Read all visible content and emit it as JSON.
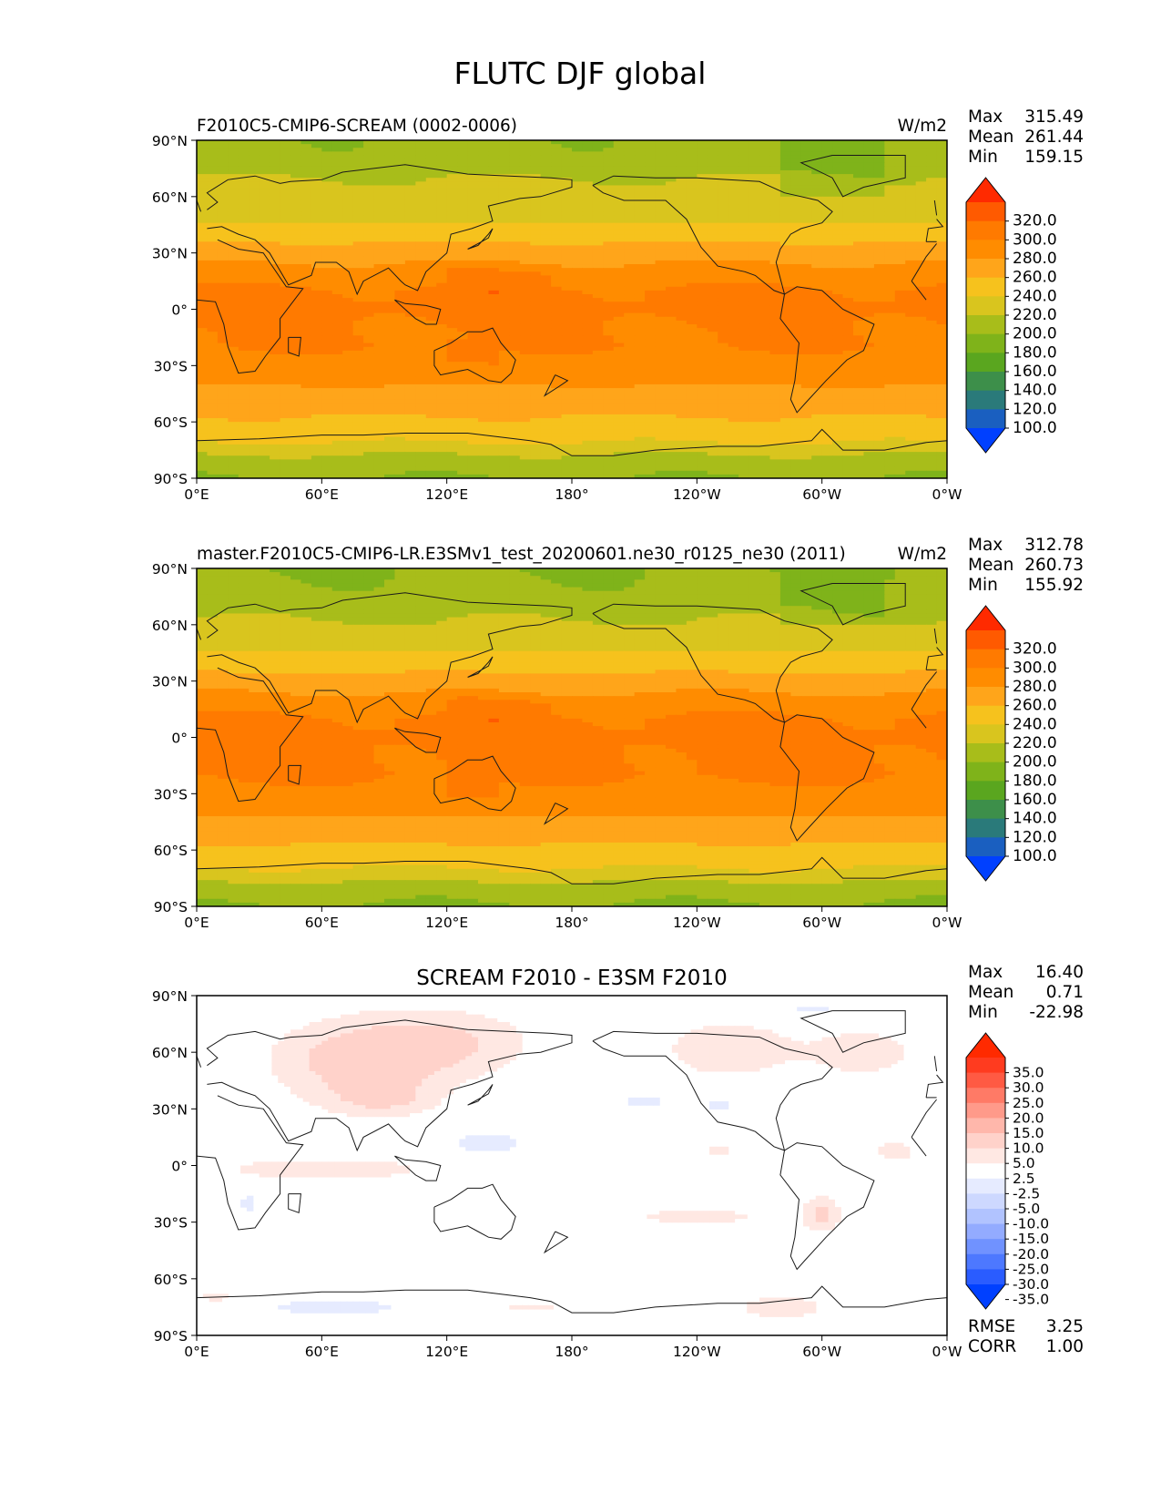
{
  "figure": {
    "title": "FLUTC DJF global"
  },
  "chart_data": [
    {
      "type": "heatmap",
      "title": "F2010C5-CMIP6-SCREAM (0002-0006)",
      "units": "W/m2",
      "stats": [
        {
          "label": "Max",
          "value": "315.49"
        },
        {
          "label": "Mean",
          "value": "261.44"
        },
        {
          "label": "Min",
          "value": "159.15"
        }
      ],
      "x_ticks": [
        "0°E",
        "60°E",
        "120°E",
        "180°",
        "120°W",
        "60°W",
        "0°W"
      ],
      "y_ticks": [
        "90°N",
        "60°N",
        "30°N",
        "0°",
        "30°S",
        "60°S",
        "90°S"
      ],
      "xlim": [
        0,
        360
      ],
      "ylim": [
        -90,
        90
      ],
      "colorbar": {
        "labels": [
          "320.0",
          "300.0",
          "280.0",
          "260.0",
          "240.0",
          "220.0",
          "200.0",
          "180.0",
          "160.0",
          "140.0",
          "120.0",
          "100.0"
        ],
        "colors": [
          "#ff2a00",
          "#ff5a00",
          "#ff7a00",
          "#ff8c00",
          "#ffa51a",
          "#f6c21d",
          "#d9c51e",
          "#a8bd1a",
          "#7fb31a",
          "#5aa61f",
          "#3d8f4a",
          "#2a7a7a",
          "#1a5fc0",
          "#0040ff"
        ]
      },
      "field": {
        "kind": "mean",
        "lat": [
          90,
          80,
          70,
          60,
          50,
          40,
          30,
          20,
          10,
          0,
          -10,
          -20,
          -30,
          -40,
          -50,
          -60,
          -70,
          -80,
          -90
        ],
        "profile": [
          183,
          186,
          200,
          207,
          215,
          230,
          252,
          267,
          283,
          286,
          281,
          281,
          270,
          261,
          248,
          237,
          222,
          193,
          180
        ]
      }
    },
    {
      "type": "heatmap",
      "title": "master.F2010C5-CMIP6-LR.E3SMv1_test_20200601.ne30_r0125_ne30 (2011)",
      "units": "W/m2",
      "stats": [
        {
          "label": "Max",
          "value": "312.78"
        },
        {
          "label": "Mean",
          "value": "260.73"
        },
        {
          "label": "Min",
          "value": "155.92"
        }
      ],
      "x_ticks": [
        "0°E",
        "60°E",
        "120°E",
        "180°",
        "120°W",
        "60°W",
        "0°W"
      ],
      "y_ticks": [
        "90°N",
        "60°N",
        "30°N",
        "0°",
        "30°S",
        "60°S",
        "90°S"
      ],
      "xlim": [
        0,
        360
      ],
      "ylim": [
        -90,
        90
      ],
      "colorbar": {
        "labels": [
          "320.0",
          "300.0",
          "280.0",
          "260.0",
          "240.0",
          "220.0",
          "200.0",
          "180.0",
          "160.0",
          "140.0",
          "120.0",
          "100.0"
        ],
        "colors": [
          "#ff2a00",
          "#ff5a00",
          "#ff7a00",
          "#ff8c00",
          "#ffa51a",
          "#f6c21d",
          "#d9c51e",
          "#a8bd1a",
          "#7fb31a",
          "#5aa61f",
          "#3d8f4a",
          "#2a7a7a",
          "#1a5fc0",
          "#0040ff"
        ]
      },
      "field": {
        "kind": "mean",
        "lat": [
          90,
          80,
          70,
          60,
          50,
          40,
          30,
          20,
          10,
          0,
          -10,
          -20,
          -30,
          -40,
          -50,
          -60,
          -70,
          -80,
          -90
        ],
        "profile": [
          180,
          183,
          194,
          202,
          212,
          228,
          250,
          266,
          283,
          286,
          283,
          283,
          274,
          263,
          249,
          235,
          220,
          191,
          178
        ]
      }
    },
    {
      "type": "heatmap",
      "title": "SCREAM F2010 - E3SM F2010",
      "units": "",
      "stats": [
        {
          "label": "Max",
          "value": "16.40"
        },
        {
          "label": "Mean",
          "value": "0.71"
        },
        {
          "label": "Min",
          "value": "-22.98"
        }
      ],
      "extra_stats": [
        {
          "label": "RMSE",
          "value": "3.25"
        },
        {
          "label": "CORR",
          "value": "1.00"
        }
      ],
      "x_ticks": [
        "0°E",
        "60°E",
        "120°E",
        "180°",
        "120°W",
        "60°W",
        "0°W"
      ],
      "y_ticks": [
        "90°N",
        "60°N",
        "30°N",
        "0°",
        "30°S",
        "60°S",
        "90°S"
      ],
      "xlim": [
        0,
        360
      ],
      "ylim": [
        -90,
        90
      ],
      "colorbar": {
        "labels": [
          "35.0",
          "30.0",
          "25.0",
          "20.0",
          "15.0",
          "10.0",
          "5.0",
          "2.5",
          "-2.5",
          "-5.0",
          "-10.0",
          "-15.0",
          "-20.0",
          "-25.0",
          "-30.0",
          "-35.0"
        ],
        "colors": [
          "#ff2a00",
          "#ff3b1f",
          "#ff5a43",
          "#ff7a66",
          "#ff9a8a",
          "#ffb7ab",
          "#ffd2ca",
          "#ffe8e3",
          "#ffffff",
          "#e6ebff",
          "#cdd8ff",
          "#b1c3ff",
          "#93abff",
          "#7092ff",
          "#4d78ff",
          "#2a5cff",
          "#0040ff"
        ]
      },
      "field": {
        "kind": "diff",
        "positive": [
          {
            "lon": 75,
            "lat": 55,
            "sx": 30,
            "sy": 16,
            "v": 6
          },
          {
            "lon": 120,
            "lat": 65,
            "sx": 30,
            "sy": 13,
            "v": 5
          },
          {
            "lon": 255,
            "lat": 62,
            "sx": 22,
            "sy": 11,
            "v": 5
          },
          {
            "lon": 320,
            "lat": 60,
            "sx": 20,
            "sy": 10,
            "v": 4
          },
          {
            "lon": 90,
            "lat": 35,
            "sx": 18,
            "sy": 7,
            "v": 4
          },
          {
            "lon": 60,
            "lat": -2,
            "sx": 45,
            "sy": 5,
            "v": 4
          },
          {
            "lon": 240,
            "lat": -27,
            "sx": 38,
            "sy": 5,
            "v": 3
          },
          {
            "lon": 175,
            "lat": -15,
            "sx": 18,
            "sy": 5,
            "v": 3
          },
          {
            "lon": 300,
            "lat": -25,
            "sx": 6,
            "sy": 8,
            "v": 5
          },
          {
            "lon": 335,
            "lat": 8,
            "sx": 7,
            "sy": 3,
            "v": 5
          },
          {
            "lon": 250,
            "lat": 8,
            "sx": 8,
            "sy": 3,
            "v": 3
          },
          {
            "lon": 280,
            "lat": -75,
            "sx": 18,
            "sy": 5,
            "v": 4
          },
          {
            "lon": 160,
            "lat": -75,
            "sx": 20,
            "sy": 3,
            "v": 3
          },
          {
            "lon": 10,
            "lat": -70,
            "sx": 15,
            "sy": 3,
            "v": 3
          }
        ],
        "negative": [
          {
            "lon": 140,
            "lat": 12,
            "sx": 12,
            "sy": 4,
            "v": -5
          },
          {
            "lon": 215,
            "lat": 34,
            "sx": 12,
            "sy": 5,
            "v": -3
          },
          {
            "lon": 150,
            "lat": -12,
            "sx": 12,
            "sy": 4,
            "v": -3
          },
          {
            "lon": 175,
            "lat": -14,
            "sx": 7,
            "sy": 3,
            "v": -4
          },
          {
            "lon": 5,
            "lat": 5,
            "sx": 8,
            "sy": 6,
            "v": -3
          },
          {
            "lon": 65,
            "lat": -75,
            "sx": 30,
            "sy": 3,
            "v": -4
          },
          {
            "lon": 295,
            "lat": 82,
            "sx": 25,
            "sy": 4,
            "v": -3
          },
          {
            "lon": 250,
            "lat": 32,
            "sx": 8,
            "sy": 5,
            "v": -3
          },
          {
            "lon": 25,
            "lat": -20,
            "sx": 6,
            "sy": 6,
            "v": -3
          }
        ]
      }
    }
  ]
}
